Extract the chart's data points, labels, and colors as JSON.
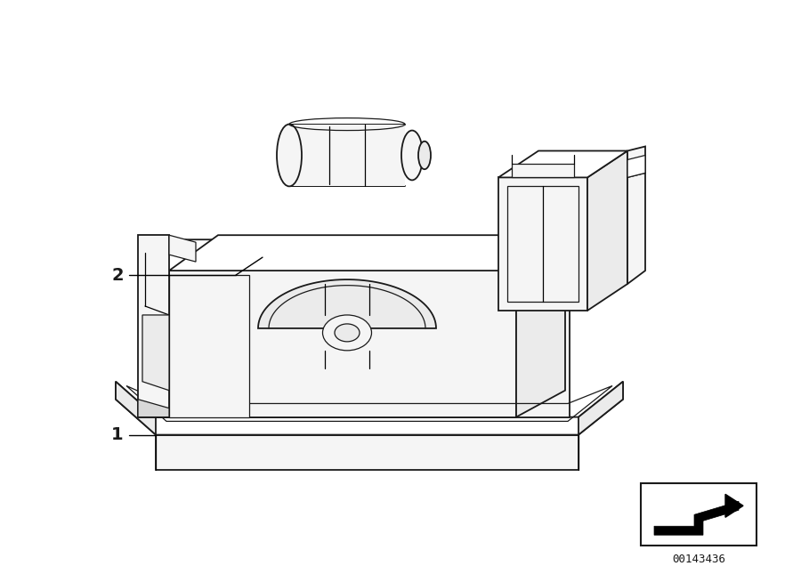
{
  "background_color": "#ffffff",
  "line_color": "#1a1a1a",
  "fig_width": 9.0,
  "fig_height": 6.36,
  "dpi": 100,
  "part_number": "00143436",
  "label_1": "1",
  "label_2": "2",
  "lw_main": 1.3,
  "lw_detail": 0.9,
  "face_light": "#f5f5f5",
  "face_mid": "#ebebeb",
  "face_dark": "#d8d8d8",
  "face_white": "#ffffff"
}
